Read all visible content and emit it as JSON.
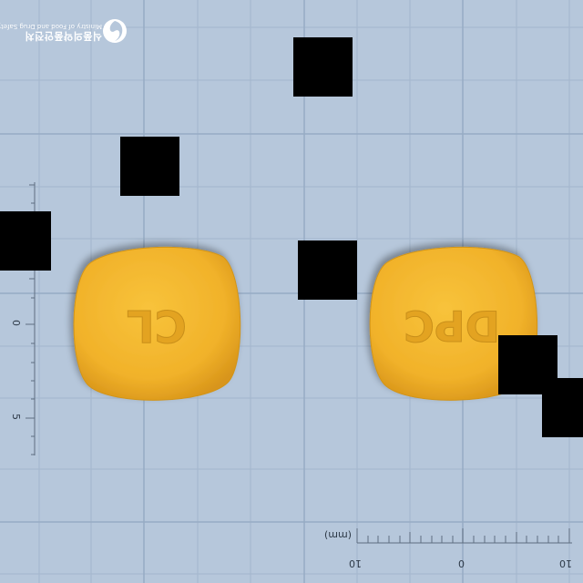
{
  "logo": {
    "name_ko": "식품의약품안전처",
    "name_en": "Ministry of Food and Drug Safety",
    "icon": "mfds-emblem-icon"
  },
  "ruler": {
    "unit": "(mm)",
    "bottom_labels": [
      "10",
      "0",
      "10"
    ],
    "left_labels": [
      "0",
      "5"
    ]
  },
  "tablets": [
    {
      "imprint": "CL",
      "color": "#f3b62c"
    },
    {
      "imprint": "DPC",
      "color": "#f3b62c"
    }
  ],
  "colors": {
    "background": "#b6c7db",
    "grid": "#9fb3cb",
    "redaction": "#000000"
  }
}
